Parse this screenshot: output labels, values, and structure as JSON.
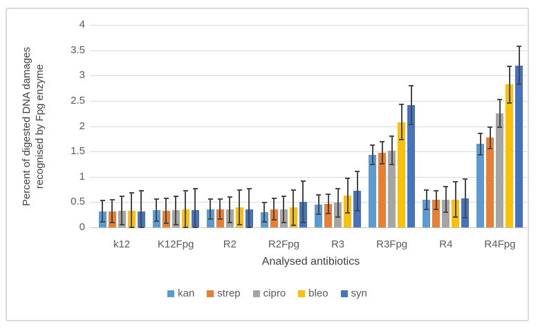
{
  "chart_data": {
    "type": "bar",
    "title": "",
    "xlabel": "Analysed antibiotics",
    "ylabel": "Percent of digested DNA damages recognised by Fpg enzyme",
    "ylabel_lines": [
      "Percent of digested DNA damages",
      "recognised by Fpg enzyme"
    ],
    "ylim": [
      0,
      4
    ],
    "yticks": [
      0,
      0.5,
      1,
      1.5,
      2,
      2.5,
      3,
      3.5,
      4
    ],
    "grid": true,
    "legend_position": "bottom",
    "error_bars": true,
    "categories": [
      "k12",
      "K12Fpg",
      "R2",
      "R2Fpg",
      "R3",
      "R3Fpg",
      "R4",
      "R4Fpg"
    ],
    "series": [
      {
        "name": "kan",
        "color": "#5B9BD5",
        "values": [
          0.32,
          0.34,
          0.36,
          0.3,
          0.45,
          1.43,
          0.55,
          1.65
        ],
        "errors": [
          0.21,
          0.22,
          0.2,
          0.19,
          0.19,
          0.19,
          0.19,
          0.21
        ]
      },
      {
        "name": "strep",
        "color": "#ED7D31",
        "values": [
          0.32,
          0.33,
          0.36,
          0.36,
          0.47,
          1.48,
          0.54,
          1.77
        ],
        "errors": [
          0.22,
          0.25,
          0.2,
          0.21,
          0.19,
          0.22,
          0.19,
          0.21
        ]
      },
      {
        "name": "cipro",
        "color": "#A5A5A5",
        "values": [
          0.33,
          0.34,
          0.35,
          0.35,
          0.49,
          1.52,
          0.55,
          2.25
        ],
        "errors": [
          0.28,
          0.28,
          0.25,
          0.26,
          0.28,
          0.28,
          0.25,
          0.27
        ]
      },
      {
        "name": "bleo",
        "color": "#FFC000",
        "values": [
          0.33,
          0.35,
          0.4,
          0.39,
          0.63,
          2.08,
          0.55,
          2.82
        ],
        "errors": [
          0.36,
          0.37,
          0.34,
          0.35,
          0.34,
          0.35,
          0.35,
          0.36
        ]
      },
      {
        "name": "syn",
        "color": "#4472C4",
        "values": [
          0.32,
          0.34,
          0.36,
          0.5,
          0.72,
          2.42,
          0.57,
          3.2
        ],
        "errors": [
          0.4,
          0.42,
          0.41,
          0.41,
          0.39,
          0.38,
          0.38,
          0.38
        ]
      }
    ]
  },
  "colors": {
    "gridline": "#d9d9d9",
    "baseline": "#c6c6c6",
    "error_bar": "#44464a",
    "tick_text": "#595959",
    "title_text": "#404040",
    "frame_border": "#d9d9d9",
    "background": "#ffffff"
  }
}
